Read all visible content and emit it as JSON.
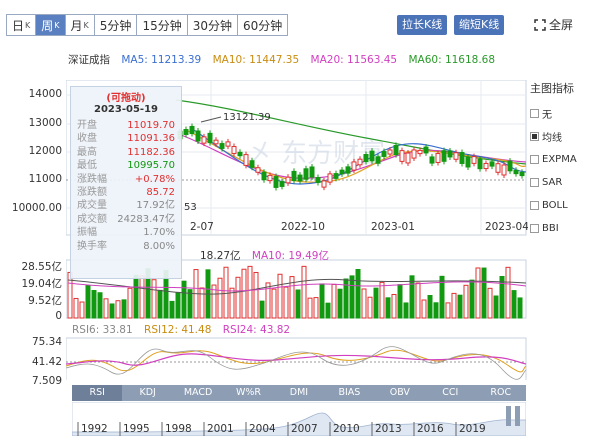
{
  "tabs": [
    {
      "label": "日",
      "sub": "K"
    },
    {
      "label": "周",
      "sub": "K"
    },
    {
      "label": "月",
      "sub": "K"
    },
    {
      "label": "5分钟"
    },
    {
      "label": "15分钟"
    },
    {
      "label": "30分钟"
    },
    {
      "label": "60分钟"
    }
  ],
  "active_tab": 1,
  "toolbar": {
    "stretch_label": "拉长K线",
    "shrink_label": "缩短K线",
    "fullscreen_label": "全屏"
  },
  "ma_header": {
    "name": "深证成指",
    "ma5": "MA5: 11213.39",
    "ma10": "MA10: 11447.35",
    "ma20": "MA20: 11563.45",
    "ma60": "MA60: 11618.68"
  },
  "colors": {
    "ma5": "#3a6fd0",
    "ma10": "#e0a020",
    "ma20": "#d040c0",
    "ma60": "#2a9a2a",
    "up": "#e03030",
    "down": "#119911"
  },
  "price_axis": [
    "14000",
    "13000",
    "12000",
    "11000",
    "10000.00"
  ],
  "date_axis": [
    "2-07",
    "2022-10",
    "2023-01",
    "2023-04"
  ],
  "peak_label": "13121.39",
  "low_label": "53",
  "tooltip": {
    "drag": "(可拖动)",
    "date": "2023-05-19",
    "rows": [
      {
        "label": "开盘",
        "value": "11019.70",
        "cls": "red"
      },
      {
        "label": "收盘",
        "value": "11091.36",
        "cls": "red"
      },
      {
        "label": "最高",
        "value": "11182.36",
        "cls": "red"
      },
      {
        "label": "最低",
        "value": "10995.70",
        "cls": "grn"
      },
      {
        "label": "涨跌幅",
        "value": "+0.78%",
        "cls": "red"
      },
      {
        "label": "涨跌额",
        "value": "85.72",
        "cls": "red"
      },
      {
        "label": "成交量",
        "value": "17.92亿",
        "cls": "gray"
      },
      {
        "label": "成交额",
        "value": "24283.47亿",
        "cls": "gray"
      },
      {
        "label": "振幅",
        "value": "1.70%",
        "cls": "gray"
      },
      {
        "label": "换手率",
        "value": "8.00%",
        "cls": "gray"
      }
    ]
  },
  "volume_header": {
    "v1": "18.27亿",
    "ma10": "MA10: 19.49亿"
  },
  "volume_axis": [
    "28.55亿",
    "19.04亿",
    "9.52亿",
    "0"
  ],
  "rsi_header": {
    "rsi6": "RSI6: 33.81",
    "rsi12": "RSI12: 41.48",
    "rsi24": "RSI24: 43.82"
  },
  "rsi_axis": [
    "75.34",
    "41.42",
    "7.509"
  ],
  "indicators_panel": {
    "title": "主图指标",
    "options": [
      {
        "label": "无",
        "on": false
      },
      {
        "label": "均线",
        "on": true
      },
      {
        "label": "EXPMA",
        "on": false
      },
      {
        "label": "SAR",
        "on": false
      },
      {
        "label": "BOLL",
        "on": false
      },
      {
        "label": "BBI",
        "on": false
      }
    ]
  },
  "indicator_tabs": [
    "RSI",
    "KDJ",
    "MACD",
    "W%R",
    "DMI",
    "BIAS",
    "OBV",
    "CCI",
    "ROC"
  ],
  "active_indicator": 0,
  "years": [
    "1992",
    "1995",
    "1998",
    "2001",
    "2004",
    "2007",
    "2010",
    "2013",
    "2016",
    "2019"
  ]
}
